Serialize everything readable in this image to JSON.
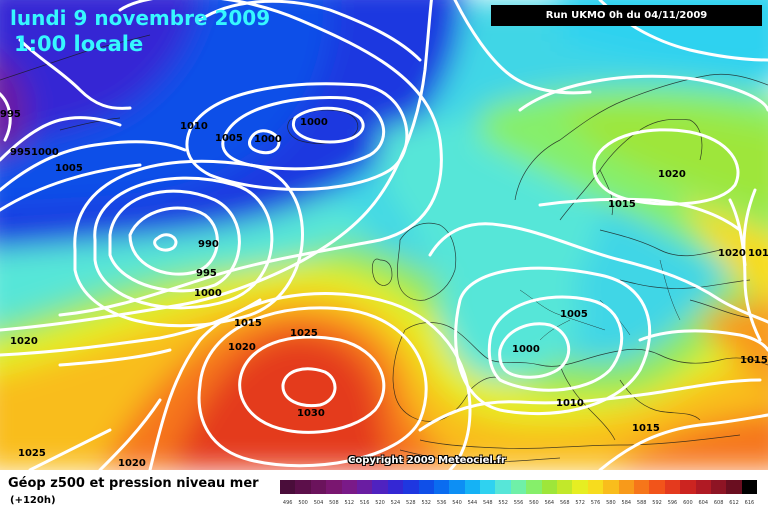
{
  "header": {
    "date": "lundi 9 novembre 2009",
    "time": "1:00 locale",
    "run": "Run UKMO 0h du 04/11/2009"
  },
  "copyright": "Copyright 2009 Meteociel.fr",
  "footer": {
    "caption": "Géop z500 et pression niveau mer",
    "subcaption": "(+120h)"
  },
  "isobar_labels": [
    "995",
    "995",
    "1000",
    "1005",
    "1010",
    "1005",
    "1000",
    "1000",
    "990",
    "995",
    "1000",
    "1015",
    "1020",
    "1025",
    "1030",
    "1020",
    "1025",
    "1020",
    "1015",
    "1020",
    "1020",
    "1015",
    "1005",
    "1000",
    "1010",
    "1015",
    "1015"
  ],
  "legend": {
    "labels": [
      "496",
      "500",
      "504",
      "508",
      "512",
      "516",
      "520",
      "524",
      "528",
      "532",
      "536",
      "540",
      "544",
      "548",
      "552",
      "556",
      "560",
      "564",
      "568",
      "572",
      "576",
      "580",
      "584",
      "588",
      "592",
      "596",
      "600",
      "604",
      "608",
      "612",
      "616"
    ],
    "colors": [
      "#4a0d3a",
      "#5c0f4a",
      "#6b135c",
      "#7a1670",
      "#7a1a88",
      "#6a1da2",
      "#4f22c0",
      "#3427d4",
      "#1f37e0",
      "#0f4fe8",
      "#0a6cf0",
      "#0d8ff4",
      "#15b2f5",
      "#2fd2f0",
      "#57e6d8",
      "#6ff0a8",
      "#86ef6a",
      "#9ee63a",
      "#c2e82a",
      "#e6ee22",
      "#f7dc1e",
      "#f9bd1c",
      "#f89a1a",
      "#f6761a",
      "#f2541a",
      "#e43a1e",
      "#cc2420",
      "#b01a24",
      "#8e1424",
      "#6a0e20",
      "#000000"
    ]
  }
}
